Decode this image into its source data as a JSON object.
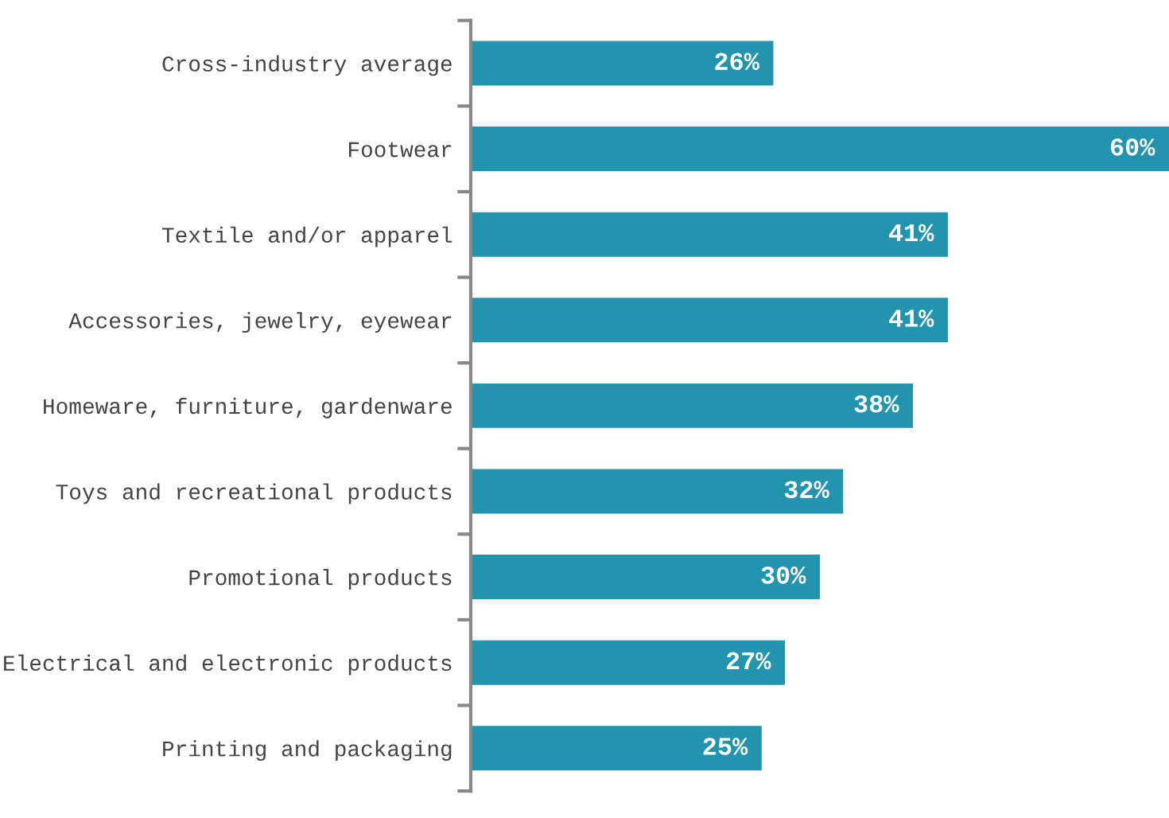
{
  "chart_data": {
    "type": "bar",
    "orientation": "horizontal",
    "categories": [
      "Cross-industry average",
      "Footwear",
      "Textile and/or apparel",
      "Accessories, jewelry, eyewear",
      "Homeware, furniture, gardenware",
      "Toys and recreational products",
      "Promotional products",
      "Electrical and electronic products",
      "Printing and packaging"
    ],
    "values": [
      26,
      60,
      41,
      41,
      38,
      32,
      30,
      27,
      25
    ],
    "value_labels": [
      "26%",
      "60%",
      "41%",
      "41%",
      "38%",
      "32%",
      "30%",
      "27%",
      "25%"
    ],
    "color": "#2394ad",
    "grid": false,
    "legend": false
  }
}
